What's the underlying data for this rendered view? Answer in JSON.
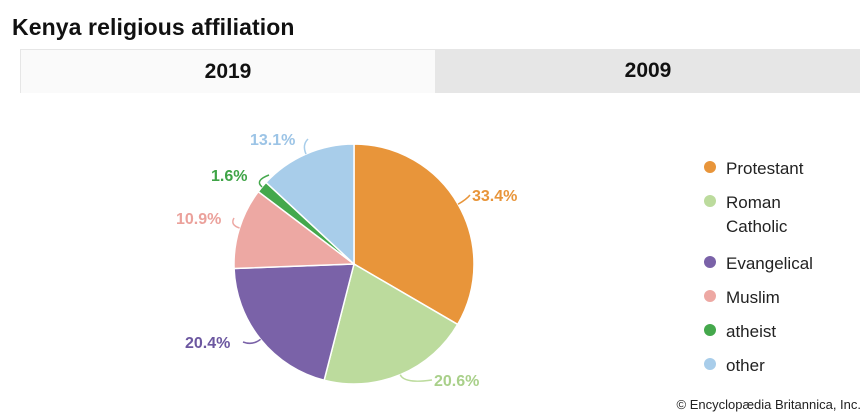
{
  "title": "Kenya religious affiliation",
  "tabs": [
    {
      "label": "2019",
      "active": true
    },
    {
      "label": "2009",
      "active": false
    }
  ],
  "credit": "© Encyclopædia Britannica, Inc.",
  "chart_data": {
    "type": "pie",
    "title": "Kenya religious affiliation",
    "year": "2019",
    "slices": [
      {
        "label": "Protestant",
        "value": 33.4,
        "value_label": "33.4%",
        "color": "#e8953a"
      },
      {
        "label": "Roman Catholic",
        "value": 20.6,
        "value_label": "20.6%",
        "color": "#bcdb9d"
      },
      {
        "label": "Evangelical",
        "value": 20.4,
        "value_label": "20.4%",
        "color": "#7a62a8"
      },
      {
        "label": "Muslim",
        "value": 10.9,
        "value_label": "10.9%",
        "color": "#eda8a3"
      },
      {
        "label": "atheist",
        "value": 1.6,
        "value_label": "1.6%",
        "color": "#44a84c"
      },
      {
        "label": "other",
        "value": 13.1,
        "value_label": "13.1%",
        "color": "#a8cdea"
      }
    ],
    "legend": [
      {
        "label": "Protestant",
        "color": "#e8953a"
      },
      {
        "label": "Roman Catholic",
        "color": "#bcdb9d"
      },
      {
        "label": "Evangelical",
        "color": "#7a62a8"
      },
      {
        "label": "Muslim",
        "color": "#eda8a3"
      },
      {
        "label": "atheist",
        "color": "#44a84c"
      },
      {
        "label": "other",
        "color": "#a8cdea"
      }
    ],
    "legend_position": "right"
  }
}
